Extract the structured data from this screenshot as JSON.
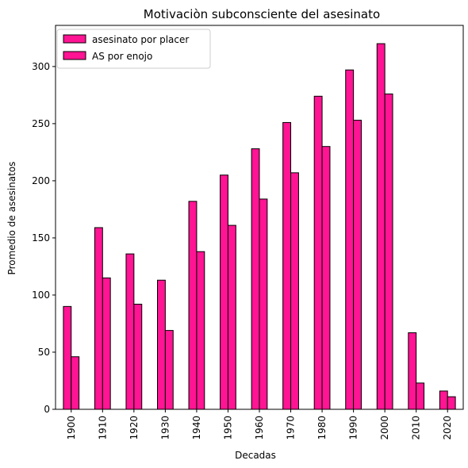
{
  "chart_data": {
    "type": "bar",
    "title": "Motivaciòn subconsciente del asesinato",
    "xlabel": "Decadas",
    "ylabel": "Promedio de asesinatos",
    "categories": [
      "1900",
      "1910",
      "1920",
      "1930",
      "1940",
      "1950",
      "1960",
      "1970",
      "1980",
      "1990",
      "2000",
      "2010",
      "2020"
    ],
    "series": [
      {
        "name": "asesinato por placer",
        "values": [
          90,
          159,
          136,
          113,
          182,
          205,
          228,
          251,
          274,
          297,
          320,
          67,
          16
        ]
      },
      {
        "name": "AS por enojo",
        "values": [
          46,
          115,
          92,
          69,
          138,
          161,
          184,
          207,
          230,
          253,
          276,
          23,
          11
        ]
      }
    ],
    "ylim": [
      0,
      336
    ],
    "yticks": [
      0,
      50,
      100,
      150,
      200,
      250,
      300
    ],
    "grid": false,
    "legend_position": "top-left",
    "colors": {
      "bar_fill": "#ff1493",
      "bar_edge": "#000000"
    }
  }
}
